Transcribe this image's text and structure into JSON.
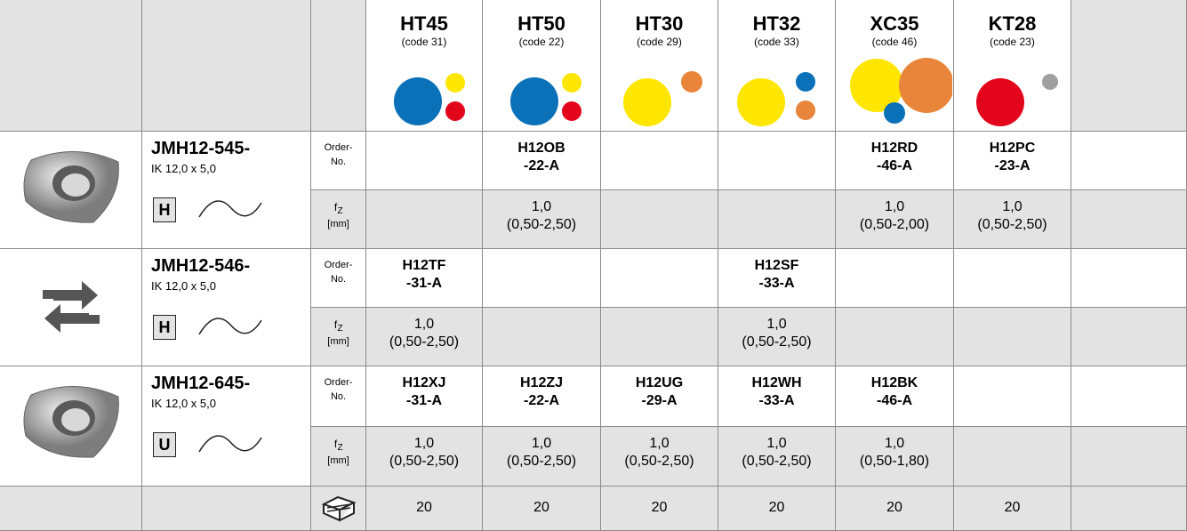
{
  "header": {
    "grades": [
      {
        "name": "HT45",
        "code": "(code 31)"
      },
      {
        "name": "HT50",
        "code": "(code 22)"
      },
      {
        "name": "HT30",
        "code": "(code 29)"
      },
      {
        "name": "HT32",
        "code": "(code 33)"
      },
      {
        "name": "XC35",
        "code": "(code 46)"
      },
      {
        "name": "KT28",
        "code": "(code 23)"
      }
    ]
  },
  "products": [
    {
      "name": "JMH12-545-",
      "size": "IK 12,0 x 5,0",
      "type": "H",
      "order_label": [
        "Order-",
        "No."
      ],
      "fz_label": {
        "symbol": "f",
        "sub": "Z",
        "unit": "[mm]"
      },
      "order_no": [
        null,
        [
          "H12OB",
          "-22-A"
        ],
        null,
        null,
        [
          "H12RD",
          "-46-A"
        ],
        [
          "H12PC",
          "-23-A"
        ]
      ],
      "fz": [
        null,
        [
          "1,0",
          "(0,50-2,50)"
        ],
        null,
        null,
        [
          "1,0",
          "(0,50-2,00)"
        ],
        [
          "1,0",
          "(0,50-2,50)"
        ]
      ]
    },
    {
      "name": "JMH12-546-",
      "size": "IK 12,0 x 5,0",
      "type": "H",
      "order_label": [
        "Order-",
        "No."
      ],
      "fz_label": {
        "symbol": "f",
        "sub": "Z",
        "unit": "[mm]"
      },
      "order_no": [
        [
          "H12TF",
          "-31-A"
        ],
        null,
        null,
        [
          "H12SF",
          "-33-A"
        ],
        null,
        null
      ],
      "fz": [
        [
          "1,0",
          "(0,50-2,50)"
        ],
        null,
        null,
        [
          "1,0",
          "(0,50-2,50)"
        ],
        null,
        null
      ]
    },
    {
      "name": "JMH12-645-",
      "size": "IK 12,0 x 5,0",
      "type": "U",
      "order_label": [
        "Order-",
        "No."
      ],
      "fz_label": {
        "symbol": "f",
        "sub": "Z",
        "unit": "[mm]"
      },
      "order_no": [
        [
          "H12XJ",
          "-31-A"
        ],
        [
          "H12ZJ",
          "-22-A"
        ],
        [
          "H12UG",
          "-29-A"
        ],
        [
          "H12WH",
          "-33-A"
        ],
        [
          "H12BK",
          "-46-A"
        ],
        null
      ],
      "fz": [
        [
          "1,0",
          "(0,50-2,50)"
        ],
        [
          "1,0",
          "(0,50-2,50)"
        ],
        [
          "1,0",
          "(0,50-2,50)"
        ],
        [
          "1,0",
          "(0,50-2,50)"
        ],
        [
          "1,0",
          "(0,50-1,80)"
        ],
        null
      ]
    }
  ],
  "footer": {
    "pack_qty": [
      20,
      20,
      20,
      20,
      20,
      20
    ]
  }
}
